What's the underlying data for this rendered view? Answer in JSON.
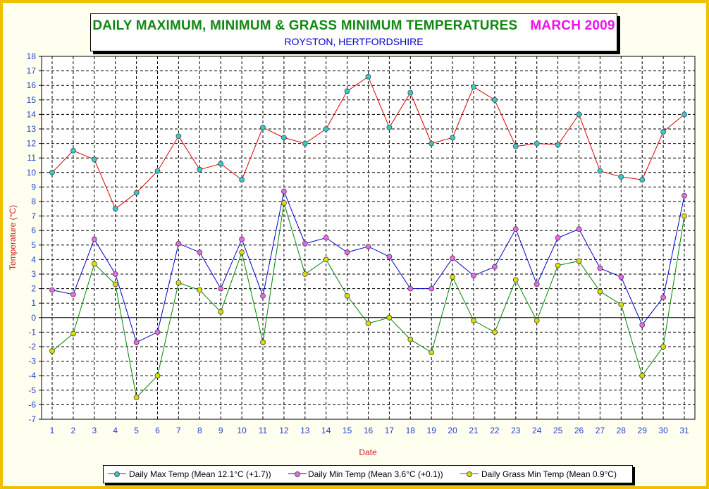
{
  "header": {
    "title_main": "DAILY MAXIMUM, MINIMUM & GRASS MINIMUM TEMPERATURES",
    "title_month": "MARCH 2009",
    "subtitle": "ROYSTON, HERTFORDSHIRE"
  },
  "colors": {
    "frame": "#f0c000",
    "background": "#fffff0",
    "title_main": "#118811",
    "title_month": "#ee11ee",
    "subtitle": "#0000cc",
    "axis_text": "#2244cc",
    "axis_label": "#cc2222"
  },
  "chart_data": {
    "type": "line",
    "xlabel": "Date",
    "ylabel": "Temperature (°C)",
    "ylim": [
      -7,
      18
    ],
    "xlim": [
      1,
      31
    ],
    "grid": true,
    "legend_position": "bottom",
    "x": [
      1,
      2,
      3,
      4,
      5,
      6,
      7,
      8,
      9,
      10,
      11,
      12,
      13,
      14,
      15,
      16,
      17,
      18,
      19,
      20,
      21,
      22,
      23,
      24,
      25,
      26,
      27,
      28,
      29,
      30,
      31
    ],
    "y_ticks": [
      18,
      17,
      16,
      15,
      14,
      13,
      12,
      11,
      10,
      9,
      8,
      7,
      6,
      5,
      4,
      3,
      2,
      1,
      0,
      -1,
      -2,
      -3,
      -4,
      -5,
      -6,
      -7
    ],
    "series": [
      {
        "name": "Daily Max Temp (Mean 12.1°C (+1.7))",
        "line_color": "#dd0000",
        "marker_color": "#33cccc",
        "values": [
          10.0,
          11.5,
          10.9,
          7.5,
          8.6,
          10.1,
          12.5,
          10.2,
          10.6,
          9.5,
          13.1,
          12.4,
          12.0,
          13.0,
          15.6,
          16.6,
          13.1,
          15.5,
          12.0,
          12.4,
          15.9,
          15.0,
          11.8,
          12.0,
          11.9,
          14.0,
          10.1,
          9.7,
          9.5,
          12.8,
          14.0
        ]
      },
      {
        "name": "Daily Min Temp (Mean 3.6°C (+0.1))",
        "line_color": "#0000cc",
        "marker_color": "#ee66ee",
        "values": [
          1.9,
          1.6,
          5.4,
          3.0,
          -1.7,
          -1.0,
          5.1,
          4.5,
          2.0,
          5.4,
          1.5,
          8.7,
          5.1,
          5.5,
          4.5,
          4.9,
          4.2,
          2.0,
          2.0,
          4.1,
          2.9,
          3.5,
          6.1,
          2.3,
          5.5,
          6.1,
          3.4,
          2.8,
          -0.5,
          1.4,
          8.4
        ]
      },
      {
        "name": "Daily Grass Min Temp (Mean 0.9°C)",
        "line_color": "#008800",
        "marker_color": "#dddd00",
        "values": [
          -2.3,
          -1.1,
          3.7,
          2.3,
          -5.5,
          -4.0,
          2.4,
          1.9,
          0.4,
          4.5,
          -1.7,
          7.9,
          3.0,
          4.0,
          1.5,
          -0.4,
          0.0,
          -1.5,
          -2.4,
          2.8,
          -0.2,
          -1.0,
          2.6,
          -0.2,
          3.6,
          3.9,
          1.8,
          0.9,
          -4.0,
          -2.0,
          7.0
        ]
      }
    ]
  }
}
